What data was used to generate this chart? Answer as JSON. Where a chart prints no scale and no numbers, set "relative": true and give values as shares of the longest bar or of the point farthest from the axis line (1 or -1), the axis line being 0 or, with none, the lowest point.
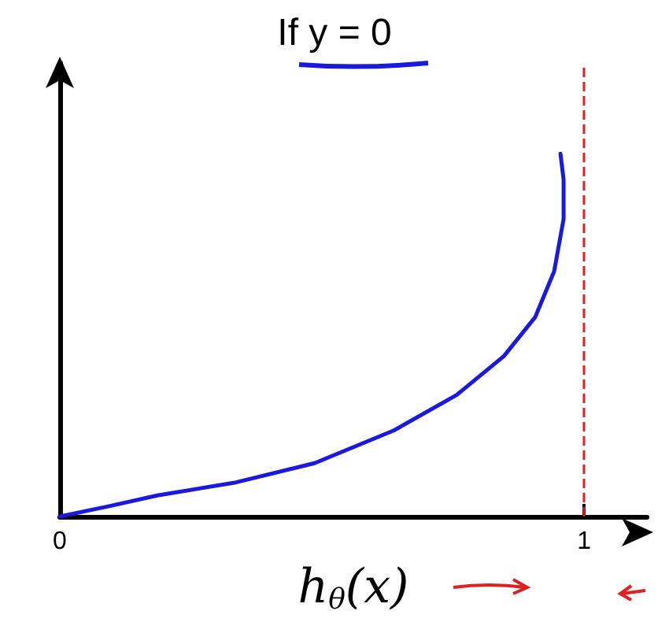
{
  "chart_data": {
    "type": "line",
    "title": "If y = 0",
    "xlabel": "h$_{θ}$(x)",
    "relative": true,
    "series": [
      {
        "color": "#1a1adf",
        "x": [
          0,
          0.096,
          0.186,
          0.336,
          0.486,
          0.637,
          0.757,
          0.847,
          0.907,
          0.943,
          0.961,
          0.961,
          0.955
        ],
        "values": [
          0,
          0.029,
          0.058,
          0.094,
          0.147,
          0.237,
          0.335,
          0.442,
          0.55,
          0.676,
          0.82,
          0.928,
          1
        ]
      }
    ],
    "xlim": [
      0,
      1.12
    ],
    "xticks": [
      0,
      1
    ],
    "grid": false,
    "marker": "none",
    "line_style": "solid",
    "ref_lines": [
      {
        "axis": "x",
        "value": 1,
        "color": "#e02020",
        "line_style": "dashed"
      }
    ]
  }
}
